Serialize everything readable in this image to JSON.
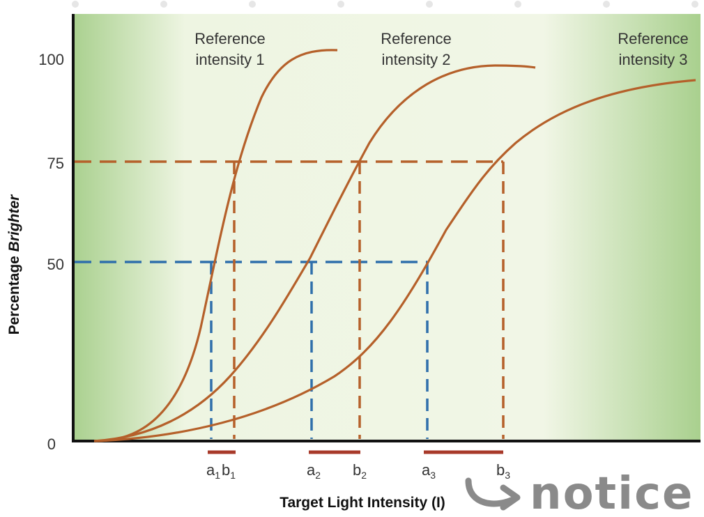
{
  "chart_data": {
    "type": "line",
    "title": "",
    "xlabel": "Target Light Intensity (I)",
    "ylabel_prefix": "Percentage ",
    "ylabel_emphasis": "Brighter",
    "ylim": [
      0,
      100
    ],
    "yticks": [
      0,
      50,
      75,
      100
    ],
    "ytick_labels": [
      "0",
      "50",
      "75",
      "100"
    ],
    "grid": false,
    "series": [
      {
        "name": "Reference intensity 1",
        "label_line1": "Reference",
        "label_line2": "intensity 1",
        "color": "#b5602a"
      },
      {
        "name": "Reference intensity 2",
        "label_line1": "Reference",
        "label_line2": "intensity 2",
        "color": "#b5602a"
      },
      {
        "name": "Reference intensity 3",
        "label_line1": "Reference",
        "label_line2": "intensity 3",
        "color": "#b5602a"
      }
    ],
    "x_markers": [
      {
        "letter": "a",
        "sub": "1"
      },
      {
        "letter": "b",
        "sub": "1"
      },
      {
        "letter": "a",
        "sub": "2"
      },
      {
        "letter": "b",
        "sub": "2"
      },
      {
        "letter": "a",
        "sub": "3"
      },
      {
        "letter": "b",
        "sub": "3"
      }
    ],
    "threshold_levels": [
      {
        "y": 50,
        "color": "#2f6fab"
      },
      {
        "y": 75,
        "color": "#b5602a"
      }
    ],
    "interval_bar_color": "#a83a2a",
    "background_gradient": [
      "#a9d08e",
      "#f1f6e6",
      "#f1f6e6",
      "#a9d08e"
    ],
    "annotation": {
      "text": "notice",
      "color": "#8a8a8a"
    }
  }
}
